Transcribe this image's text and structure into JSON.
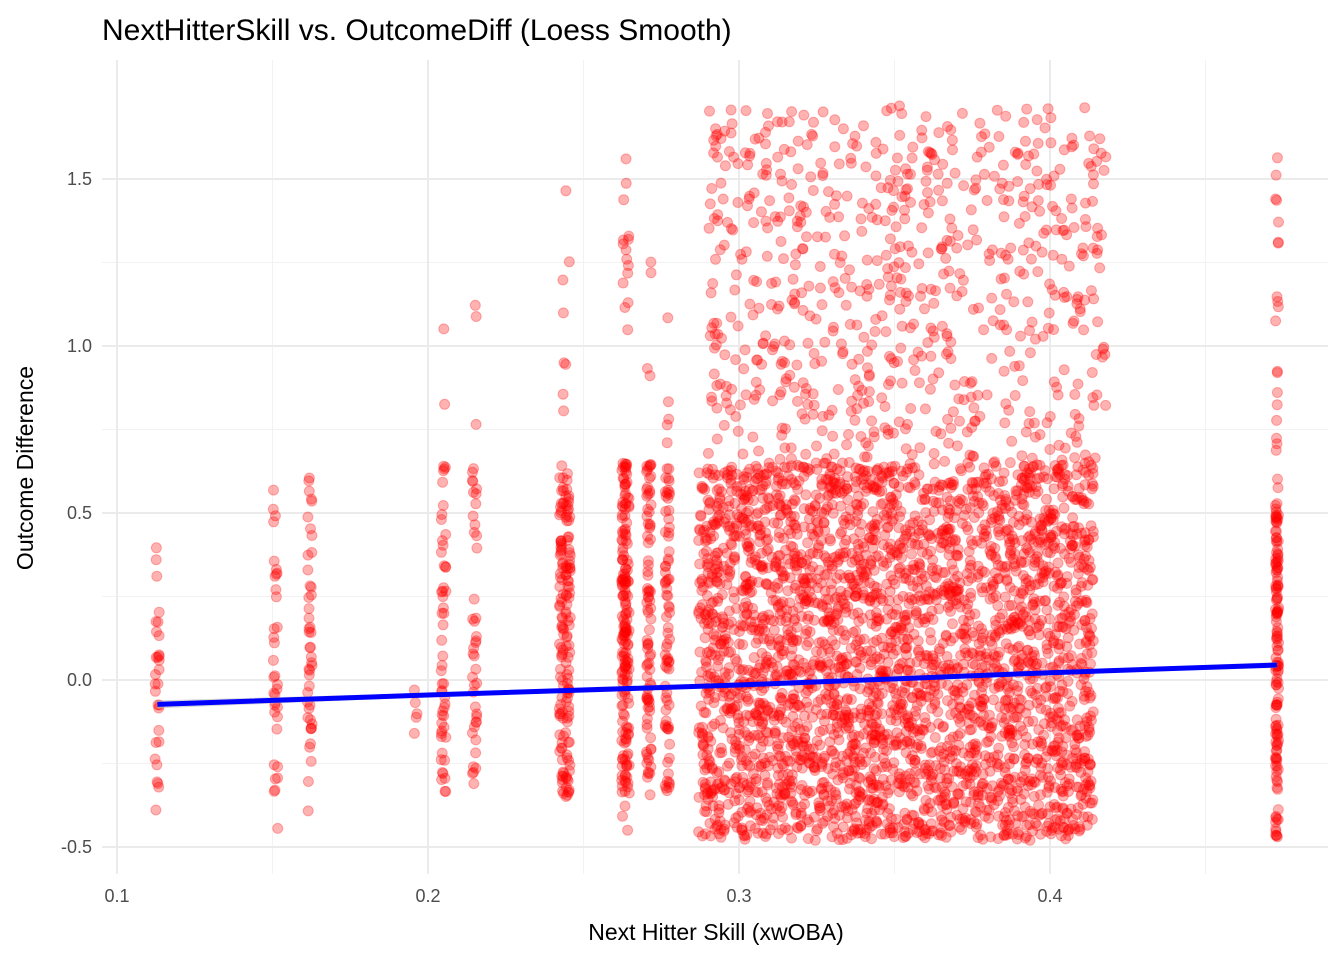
{
  "chart_data": {
    "type": "scatter",
    "title": "NextHitterSkill vs. OutcomeDiff (Loess Smooth)",
    "xlabel": "Next Hitter Skill (xwOBA)",
    "ylabel": "Outcome Difference",
    "xlim": [
      0.1,
      0.47
    ],
    "ylim": [
      -0.5,
      1.75
    ],
    "x_ticks": [
      0.1,
      0.2,
      0.3,
      0.4
    ],
    "x_tick_labels": [
      "0.1",
      "0.2",
      "0.3",
      "0.4"
    ],
    "y_ticks": [
      -0.5,
      0.0,
      0.5,
      1.0,
      1.5
    ],
    "y_tick_labels": [
      "-0.5",
      "0.0",
      "0.5",
      "1.0",
      "1.5"
    ],
    "grid": true,
    "legend": "none",
    "point_color": "#ff0000",
    "point_opacity": 0.3,
    "smooth_color": "#0000ff",
    "smooth_band_color": "#bebebe",
    "points": {
      "description_note": "",
      "x_groups": [
        0.113,
        0.151,
        0.162,
        0.196,
        0.205,
        0.215,
        0.243,
        0.245,
        0.263,
        0.264,
        0.271,
        0.277,
        0.473
      ],
      "dense_x_range": [
        0.287,
        0.414
      ],
      "dense_y_range": [
        -0.48,
        0.65
      ],
      "sparse_y_max": 1.72
    },
    "smooth": {
      "x": [
        0.113,
        0.2,
        0.3,
        0.4,
        0.473
      ],
      "y": [
        -0.073,
        -0.045,
        -0.015,
        0.022,
        0.045
      ],
      "band_halfwidth": [
        0.012,
        0.006,
        0.003,
        0.004,
        0.009
      ]
    }
  }
}
